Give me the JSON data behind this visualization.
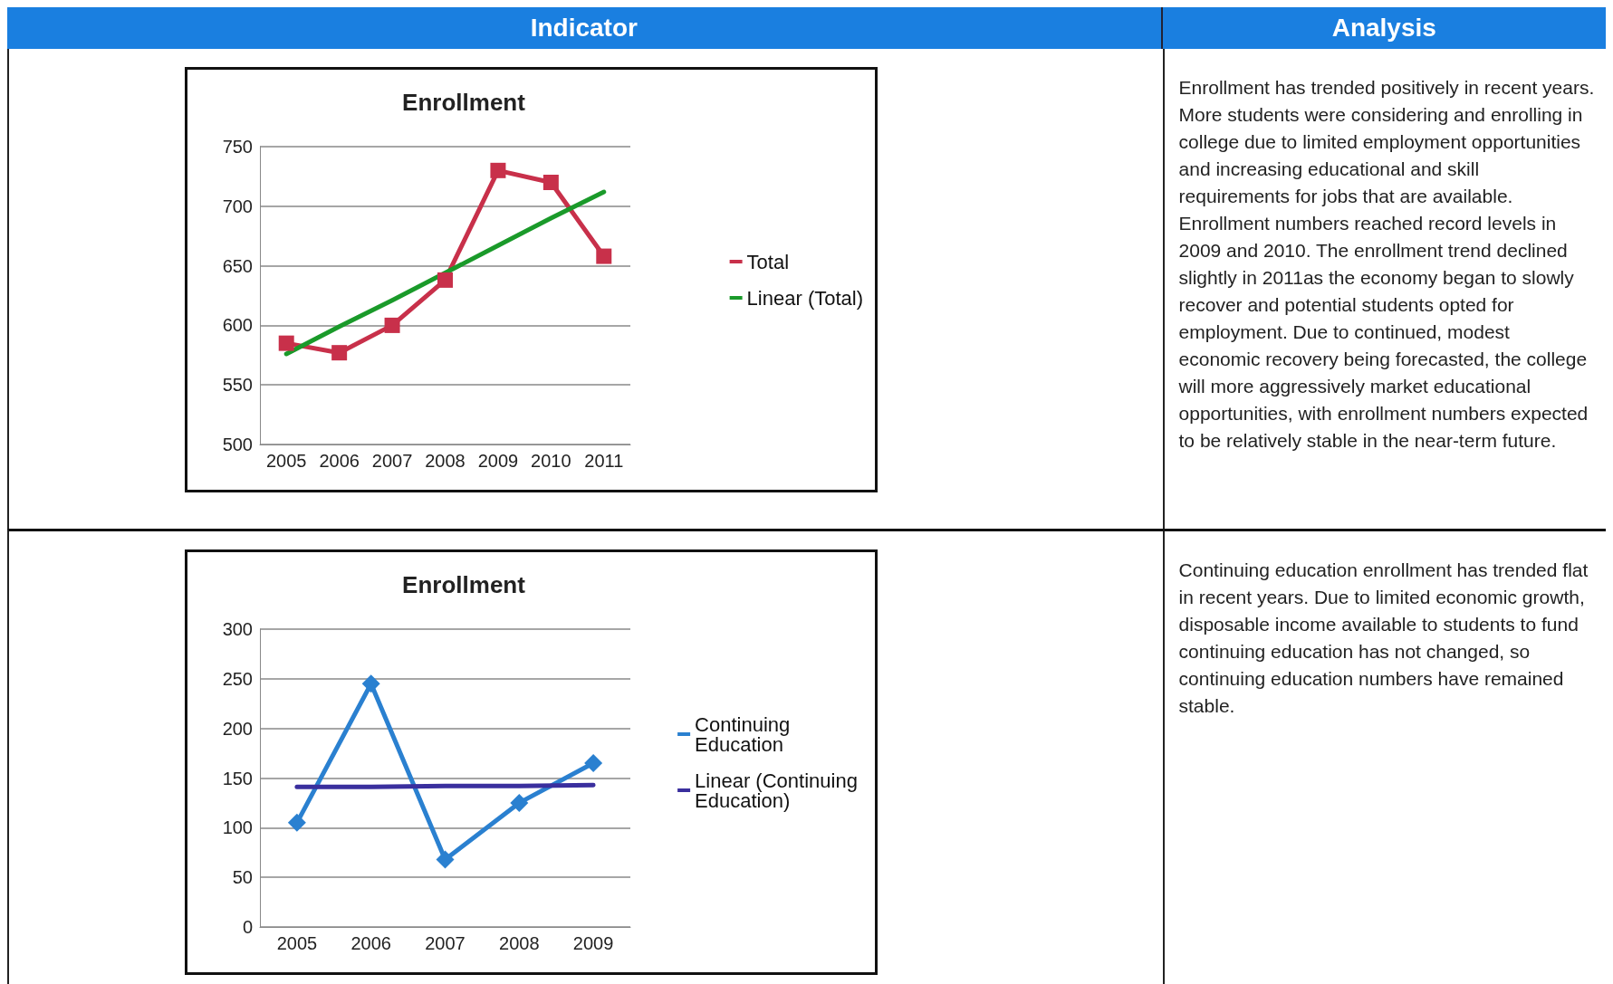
{
  "chart_data": [
    {
      "type": "other",
      "annotations": [
        "Indicator",
        "Analysis"
      ]
    },
    {
      "type": "line",
      "title": "Enrollment",
      "categories": [
        "2005",
        "2006",
        "2007",
        "2008",
        "2009",
        "2010",
        "2011"
      ],
      "ylim": [
        500,
        750
      ],
      "yticks": [
        500,
        550,
        600,
        650,
        700,
        750
      ],
      "grid": "y",
      "legend": "right",
      "line_style": "solid",
      "series": [
        {
          "name": "Total",
          "color": "#c8304a",
          "marker": "square",
          "values": [
            585,
            577,
            600,
            638,
            730,
            720,
            658
          ]
        },
        {
          "name": "Linear (Total)",
          "color": "#1a9a2a",
          "marker": "none",
          "values": [
            576,
            599,
            621,
            644,
            667,
            690,
            712
          ]
        }
      ],
      "annotations": [
        "Enrollment has trended positively in recent years. More students were considering and enrolling in college due to limited employment opportunities and increasing educational and skill requirements for jobs that are available. Enrollment numbers reached record levels in 2009 and 2010. The enrollment trend declined slightly in 2011as the economy began to slowly recover and potential students opted for employment. Due to continued, modest economic recovery being forecasted, the college will more aggressively market educational opportunities, with enrollment numbers expected to be relatively stable in the near-term future."
      ]
    },
    {
      "type": "line",
      "title": "Enrollment",
      "categories": [
        "2005",
        "2006",
        "2007",
        "2008",
        "2009"
      ],
      "ylim": [
        0,
        300
      ],
      "yticks": [
        0,
        50,
        100,
        150,
        200,
        250,
        300
      ],
      "grid": "y",
      "legend": "right",
      "line_style": "solid",
      "series": [
        {
          "name": "Continuing Education",
          "color": "#2a80d0",
          "marker": "diamond",
          "values": [
            105,
            245,
            68,
            125,
            165
          ]
        },
        {
          "name": "Linear (Continuing Education)",
          "color": "#3a2f9e",
          "marker": "none",
          "values": [
            141,
            141,
            142,
            142,
            143
          ]
        }
      ],
      "annotations": [
        "Continuing education enrollment has trended flat in recent years. Due to limited economic growth, disposable income available to students to fund continuing education has not changed, so continuing education numbers have remained stable."
      ]
    }
  ]
}
